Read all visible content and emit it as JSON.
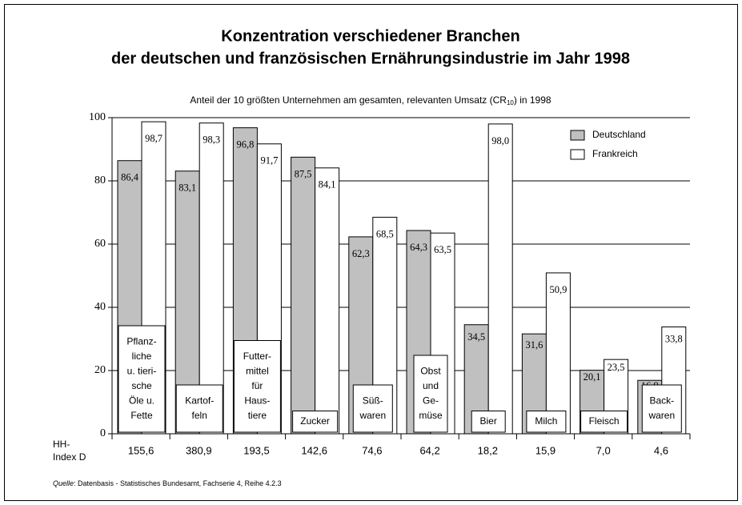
{
  "chart_data": {
    "type": "bar",
    "title": [
      "Konzentration verschiedener Branchen",
      "der deutschen und  französischen Ernährungsindustrie im Jahr 1998"
    ],
    "subtitle": {
      "text": "Anteil der 10 größten Unternehmen am gesamten, relevanten Umsatz (CR",
      "subscript": "10",
      "suffix": ") in 1998"
    },
    "categories": [
      [
        "Pflanz-",
        "liche",
        "u. tieri-",
        "sche",
        "Öle u.",
        "Fette"
      ],
      [
        "Kartof-",
        "feln"
      ],
      [
        "Futter-",
        "mittel",
        "für",
        "Haus-",
        "tiere"
      ],
      [
        "Zucker"
      ],
      [
        "Süß-",
        "waren"
      ],
      [
        "Obst",
        "und",
        "Ge-",
        "müse"
      ],
      [
        "Bier"
      ],
      [
        "Milch"
      ],
      [
        "Fleisch"
      ],
      [
        "Back-",
        "waren"
      ]
    ],
    "series": [
      {
        "name": "Deutschland",
        "color": "#c0c0c0",
        "values": [
          86.4,
          83.1,
          96.8,
          87.5,
          62.3,
          64.3,
          34.5,
          31.6,
          20.1,
          16.9
        ],
        "value_labels": [
          "86,4",
          "83,1",
          "96,8",
          "87,5",
          "62,3",
          "64,3",
          "34,5",
          "31,6",
          "20,1",
          "16,9"
        ]
      },
      {
        "name": "Frankreich",
        "color": "#ffffff",
        "values": [
          98.7,
          98.3,
          91.7,
          84.1,
          68.5,
          63.5,
          98.0,
          50.9,
          23.5,
          33.8
        ],
        "value_labels": [
          "98,7",
          "98,3",
          "91,7",
          "84,1",
          "68,5",
          "63,5",
          "98,0",
          "50,9",
          "23,5",
          "33,8"
        ]
      }
    ],
    "hh_index": {
      "label": [
        "HH-",
        "Index D"
      ],
      "values": [
        155.6,
        380.9,
        193.5,
        142.6,
        74.6,
        64.2,
        18.2,
        15.9,
        7.0,
        4.6
      ],
      "value_labels": [
        "155,6",
        "380,9",
        "193,5",
        "142,6",
        "74,6",
        "64,2",
        "18,2",
        "15,9",
        "7,0",
        "4,6"
      ]
    },
    "ylim": [
      0,
      100
    ],
    "yticks": [
      0,
      20,
      40,
      60,
      80,
      100
    ],
    "grid": true,
    "legend": "upper right",
    "source": {
      "label": "Quelle",
      "text": ": Datenbasis - Statistisches Bundesamt, Fachserie 4, Reihe 4.2.3"
    }
  }
}
